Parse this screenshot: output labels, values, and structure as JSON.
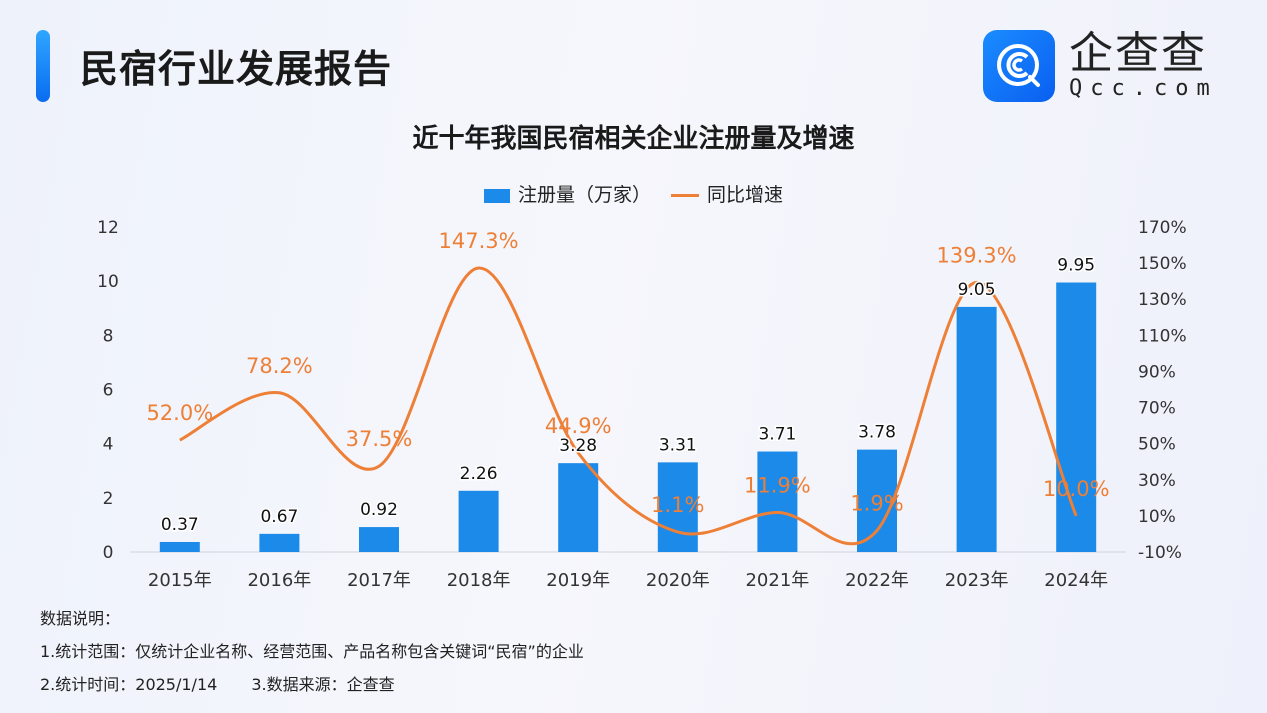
{
  "header": {
    "title": "民宿行业发展报告",
    "logo_cn": "企查查",
    "logo_en": "Qcc.com"
  },
  "colors": {
    "bar": "#1b8ae8",
    "line": "#ee7f36",
    "accent": "#0a6cf0"
  },
  "chart_data": {
    "type": "bar+line",
    "title": "近十年我国民宿相关企业注册量及增速",
    "legend_placement": "top-center",
    "categories": [
      "2015年",
      "2016年",
      "2017年",
      "2018年",
      "2019年",
      "2020年",
      "2021年",
      "2022年",
      "2023年",
      "2024年"
    ],
    "series": [
      {
        "name": "注册量（万家）",
        "type": "bar",
        "axis": "left",
        "values": [
          0.37,
          0.67,
          0.92,
          2.26,
          3.28,
          3.31,
          3.71,
          3.78,
          9.05,
          9.95
        ],
        "labels": [
          "0.37",
          "0.67",
          "0.92",
          "2.26",
          "3.28",
          "3.31",
          "3.71",
          "3.78",
          "9.05",
          "9.95"
        ]
      },
      {
        "name": "同比增速",
        "type": "line",
        "smooth": true,
        "axis": "right",
        "values": [
          52.0,
          78.2,
          37.5,
          147.3,
          44.9,
          1.1,
          11.9,
          1.9,
          139.3,
          10.0
        ],
        "labels": [
          "52.0%",
          "78.2%",
          "37.5%",
          "147.3%",
          "44.9%",
          "1.1%",
          "11.9%",
          "1.9%",
          "139.3%",
          "10.0%"
        ]
      }
    ],
    "y_left": {
      "ylim": [
        0,
        12
      ],
      "ticks": [
        "0",
        "2",
        "4",
        "6",
        "8",
        "10",
        "12"
      ]
    },
    "y_right": {
      "ylim": [
        -10,
        170
      ],
      "ticks": [
        "-10%",
        "10%",
        "30%",
        "50%",
        "70%",
        "90%",
        "110%",
        "130%",
        "150%",
        "170%"
      ]
    },
    "grid": false
  },
  "notes": {
    "heading": "数据说明：",
    "line1": "1.统计范围：仅统计企业名称、经营范围、产品名称包含关键词“民宿”的企业",
    "line2a": "2.统计时间：2025/1/14",
    "line2b": "3.数据来源：企查查"
  }
}
